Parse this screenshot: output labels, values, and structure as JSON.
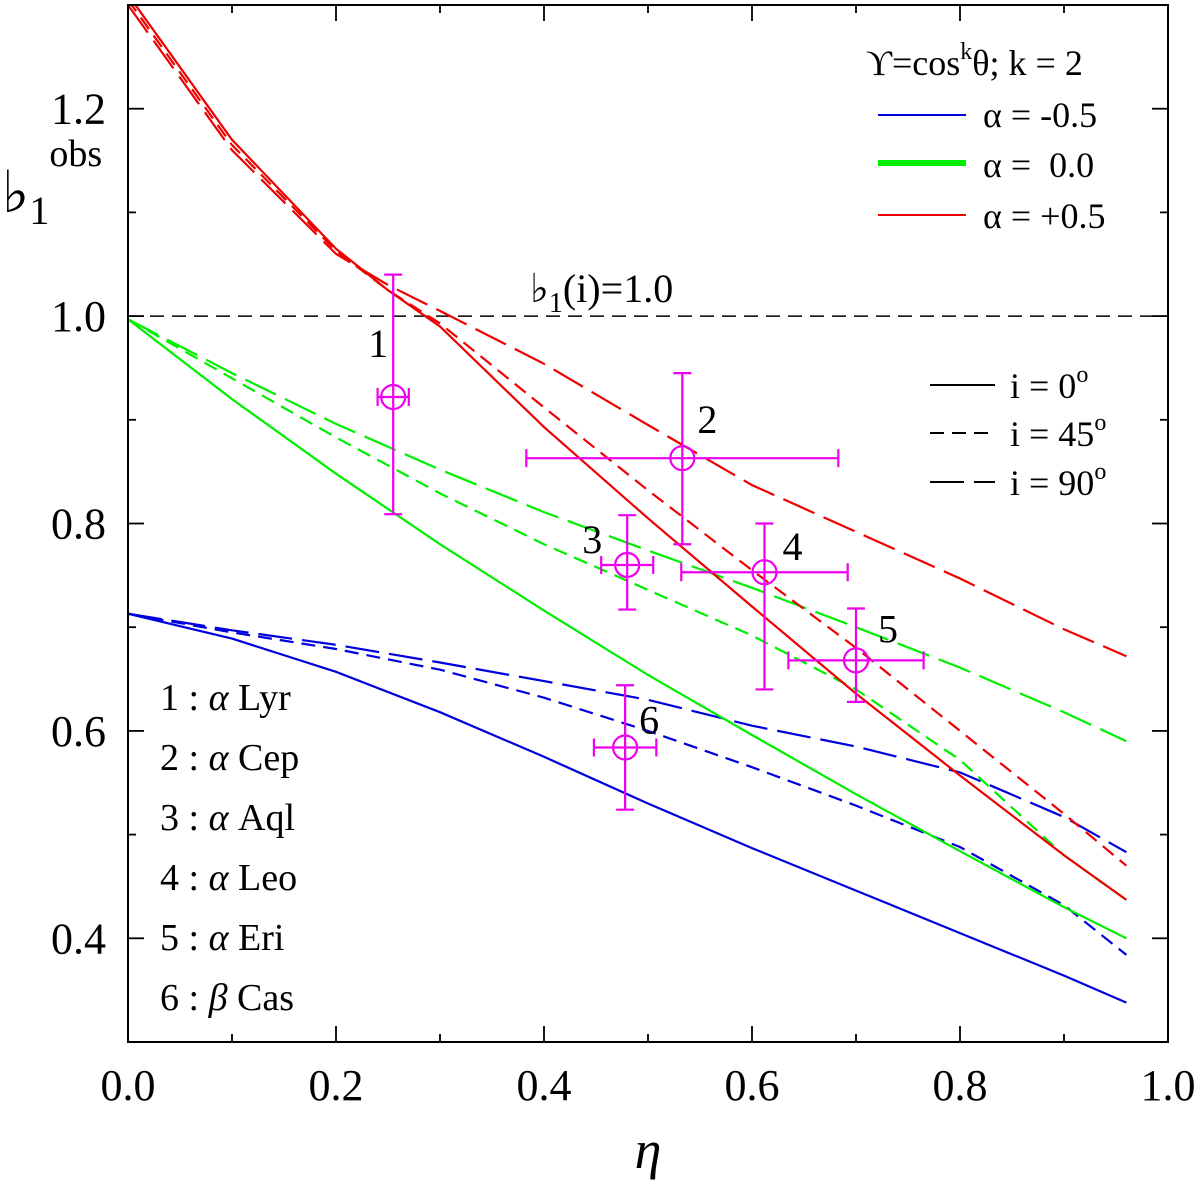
{
  "chart_data": {
    "type": "line",
    "xlabel": "η",
    "ylabel": "♭1obs",
    "ylabel_parts": {
      "base": "♭",
      "sub": "1",
      "sup": "obs"
    },
    "xlim": [
      0.0,
      1.0
    ],
    "ylim": [
      0.3,
      1.3
    ],
    "x_ticks": [
      "0.0",
      "0.2",
      "0.4",
      "0.6",
      "0.8",
      "1.0"
    ],
    "y_ticks": [
      "0.4",
      "0.6",
      "0.8",
      "1.0",
      "1.2"
    ],
    "reference_line": {
      "y": 1.0,
      "label": "♭1(i)=1.0",
      "label_parts": {
        "base": "♭",
        "sub": "1",
        "rest": "(i)=1.0"
      }
    },
    "legend_color": {
      "title": "ϒ=cosᵏθ; k = 2",
      "title_parts": {
        "a": "ϒ=cos",
        "sup": "k",
        "b": "θ; k = 2"
      },
      "entries": [
        {
          "label": "α = -0.5",
          "color": "#0000dd"
        },
        {
          "label": "α =  0.0",
          "color": "#00ee00"
        },
        {
          "label": "α = +0.5",
          "color": "#ee0000"
        }
      ]
    },
    "legend_style": {
      "entries": [
        {
          "label": "i = 0°",
          "label_parts": {
            "a": "i = 0",
            "sup": "o"
          },
          "dash": "solid"
        },
        {
          "label": "i = 45°",
          "label_parts": {
            "a": "i = 45",
            "sup": "o"
          },
          "dash": "short"
        },
        {
          "label": "i = 90°",
          "label_parts": {
            "a": "i = 90",
            "sup": "o"
          },
          "dash": "long"
        }
      ]
    },
    "series": [
      {
        "name": "α=-0.5, i=0°",
        "color": "#0000dd",
        "dash": "solid",
        "x": [
          0,
          0.1,
          0.2,
          0.3,
          0.4,
          0.5,
          0.6,
          0.7,
          0.8,
          0.9,
          0.96
        ],
        "y": [
          0.713,
          0.689,
          0.657,
          0.618,
          0.575,
          0.53,
          0.487,
          0.446,
          0.405,
          0.364,
          0.338
        ]
      },
      {
        "name": "α=-0.5, i=45°",
        "color": "#0000dd",
        "dash": "short",
        "x": [
          0,
          0.1,
          0.2,
          0.3,
          0.4,
          0.5,
          0.6,
          0.7,
          0.8,
          0.9,
          0.96
        ],
        "y": [
          0.713,
          0.695,
          0.679,
          0.659,
          0.632,
          0.6,
          0.565,
          0.528,
          0.488,
          0.432,
          0.384
        ]
      },
      {
        "name": "α=-0.5, i=90°",
        "color": "#0000dd",
        "dash": "long",
        "x": [
          0,
          0.1,
          0.2,
          0.3,
          0.4,
          0.5,
          0.6,
          0.7,
          0.8,
          0.9,
          0.96
        ],
        "y": [
          0.713,
          0.697,
          0.683,
          0.666,
          0.648,
          0.63,
          0.605,
          0.585,
          0.56,
          0.517,
          0.483
        ]
      },
      {
        "name": "α=0.0, i=0°",
        "color": "#00ee00",
        "dash": "solid",
        "x": [
          0,
          0.1,
          0.2,
          0.3,
          0.4,
          0.5,
          0.6,
          0.7,
          0.8,
          0.9,
          0.96
        ],
        "y": [
          0.997,
          0.92,
          0.848,
          0.78,
          0.716,
          0.654,
          0.596,
          0.539,
          0.484,
          0.43,
          0.4
        ]
      },
      {
        "name": "α=0.0, i=45°",
        "color": "#00ee00",
        "dash": "short",
        "x": [
          0,
          0.1,
          0.2,
          0.3,
          0.4,
          0.5,
          0.6,
          0.7,
          0.8,
          0.9,
          0.96
        ],
        "y": [
          0.997,
          0.94,
          0.883,
          0.829,
          0.78,
          0.736,
          0.692,
          0.64,
          0.572,
          0.48,
          0.437
        ]
      },
      {
        "name": "α=0.0, i=90°",
        "color": "#00ee00",
        "dash": "long",
        "x": [
          0,
          0.1,
          0.2,
          0.3,
          0.4,
          0.5,
          0.6,
          0.7,
          0.8,
          0.9,
          0.96
        ],
        "y": [
          0.997,
          0.945,
          0.896,
          0.852,
          0.811,
          0.774,
          0.738,
          0.7,
          0.661,
          0.618,
          0.59
        ]
      },
      {
        "name": "α=+0.5, i=0°",
        "color": "#ee0000",
        "dash": "solid",
        "x": [
          0,
          0.1,
          0.2,
          0.25,
          0.3,
          0.4,
          0.5,
          0.6,
          0.7,
          0.8,
          0.9,
          0.96
        ],
        "y": [
          1.31,
          1.17,
          1.065,
          1.025,
          0.99,
          0.893,
          0.805,
          0.72,
          0.636,
          0.557,
          0.48,
          0.437
        ]
      },
      {
        "name": "α=+0.5, i=45°",
        "color": "#ee0000",
        "dash": "short",
        "x": [
          0,
          0.1,
          0.2,
          0.25,
          0.3,
          0.4,
          0.5,
          0.6,
          0.7,
          0.8,
          0.9,
          0.96
        ],
        "y": [
          1.305,
          1.165,
          1.063,
          1.025,
          0.993,
          0.912,
          0.832,
          0.755,
          0.68,
          0.6,
          0.52,
          0.47
        ]
      },
      {
        "name": "α=+0.5, i=90°",
        "color": "#ee0000",
        "dash": "long",
        "x": [
          0,
          0.1,
          0.2,
          0.25,
          0.3,
          0.4,
          0.5,
          0.6,
          0.7,
          0.8,
          0.9,
          0.96
        ],
        "y": [
          1.3,
          1.16,
          1.06,
          1.03,
          1.005,
          0.954,
          0.895,
          0.837,
          0.792,
          0.747,
          0.698,
          0.672
        ]
      }
    ],
    "points": [
      {
        "id": "1",
        "x": 0.255,
        "y": 0.922,
        "xerr": 0.015,
        "yerr_low": 0.113,
        "yerr_high": 0.118
      },
      {
        "id": "2",
        "x": 0.533,
        "y": 0.863,
        "xerr": 0.15,
        "yerr_low": 0.083,
        "yerr_high": 0.082
      },
      {
        "id": "3",
        "x": 0.48,
        "y": 0.76,
        "xerr": 0.025,
        "yerr_low": 0.043,
        "yerr_high": 0.048
      },
      {
        "id": "4",
        "x": 0.612,
        "y": 0.753,
        "xerr": 0.08,
        "yerr_low": 0.113,
        "yerr_high": 0.047
      },
      {
        "id": "5",
        "x": 0.7,
        "y": 0.668,
        "xerr": 0.065,
        "yerr_low": 0.04,
        "yerr_high": 0.05
      },
      {
        "id": "6",
        "x": 0.478,
        "y": 0.584,
        "xerr": 0.03,
        "yerr_low": 0.06,
        "yerr_high": 0.06
      }
    ],
    "point_color": "#ee00ee",
    "star_key": [
      {
        "num": "1 : ",
        "greek": "α",
        "name": " Lyr"
      },
      {
        "num": "2 : ",
        "greek": "α",
        "name": " Cep"
      },
      {
        "num": "3 : ",
        "greek": "α",
        "name": " Aql"
      },
      {
        "num": "4 : ",
        "greek": "α",
        "name": " Leo"
      },
      {
        "num": "5 : ",
        "greek": "α",
        "name": " Eri"
      },
      {
        "num": "6 : ",
        "greek": "β",
        "name": " Cas"
      }
    ]
  }
}
